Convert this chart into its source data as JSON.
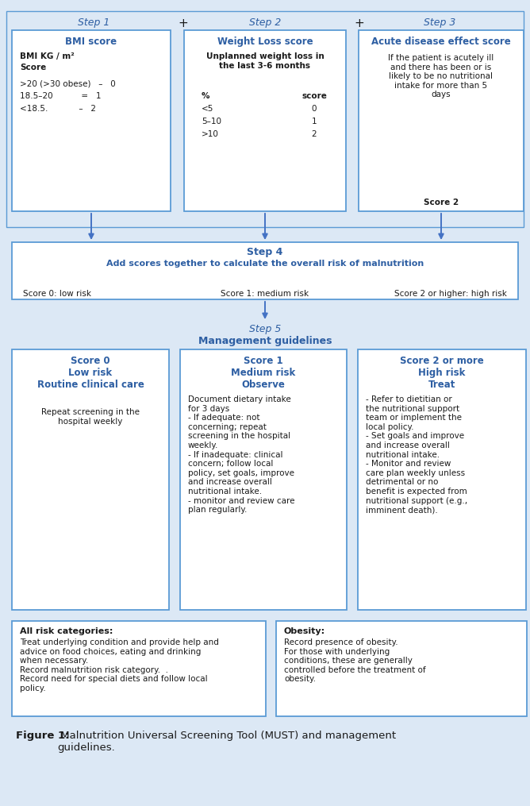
{
  "bg_color": "#dce8f5",
  "box_border_color": "#5b9bd5",
  "box_bg_color": "#ffffff",
  "title_color": "#2e5fa3",
  "text_color": "#1a1a1a",
  "arrow_color": "#4472c4",
  "step1_title": "BMI score",
  "step1_line1": "BMI KG / m²",
  "step1_line2": "Score",
  "step1_rows": [
    ">20 (>30 obese)   –   0",
    "18.5–20           =   1",
    "<18.5.            –   2"
  ],
  "step2_title": "Weight Loss score",
  "step2_sub": "Unplanned weight loss in\nthe last 3-6 months",
  "step2_col1": "%\n<5\n5–10\n>10",
  "step2_col2": "score\n0\n1\n2",
  "step3_title": "Acute disease effect score",
  "step3_body": "If the patient is acutely ill\nand there has been or is\nlikely to be no nutritional\nintake for more than 5\ndays",
  "step3_score": "Score 2",
  "step4_title": "Step 4",
  "step4_sub": "Add scores together to calculate the overall risk of malnutrition",
  "step4_s0": "Score 0: low risk",
  "step4_s1": "Score 1: medium risk",
  "step4_s2": "Score 2 or higher: high risk",
  "step5_title": "Step 5",
  "step5_sub": "Management guidelines",
  "score0_title": "Score 0\nLow risk\nRoutine clinical care",
  "score0_body": "Repeat screening in the\nhospital weekly",
  "score1_title": "Score 1\nMedium risk\nObserve",
  "score1_body": "Document dietary intake\nfor 3 days\n- If adequate: not\nconcerning; repeat\nscreening in the hospital\nweekly.\n- If inadequate: clinical\nconcern; follow local\npolicy, set goals, improve\nand increase overall\nnutritional intake.\n- monitor and review care\nplan regularly.",
  "score2_title": "Score 2 or more\nHigh risk\nTreat",
  "score2_body": "- Refer to dietitian or\nthe nutritional support\nteam or implement the\nlocal policy.\n- Set goals and improve\nand increase overall\nnutritional intake.\n- Monitor and review\ncare plan weekly unless\ndetrimental or no\nbenefit is expected from\nnutritional support (e.g.,\nimminent death).",
  "allrisk_title": "All risk categories:",
  "allrisk_body": "Treat underlying condition and provide help and\nadvice on food choices, eating and drinking\nwhen necessary.\nRecord malnutrition risk category.  .\nRecord need for special diets and follow local\npolicy.",
  "obesity_title": "Obesity:",
  "obesity_body": "Record presence of obesity.\nFor those with underlying\nconditions, these are generally\ncontrolled before the treatment of\nobesity.",
  "caption_bold": "Figure 1:",
  "caption_rest": " Malnutrition Universal Screening Tool (MUST) and management\nguidelines."
}
